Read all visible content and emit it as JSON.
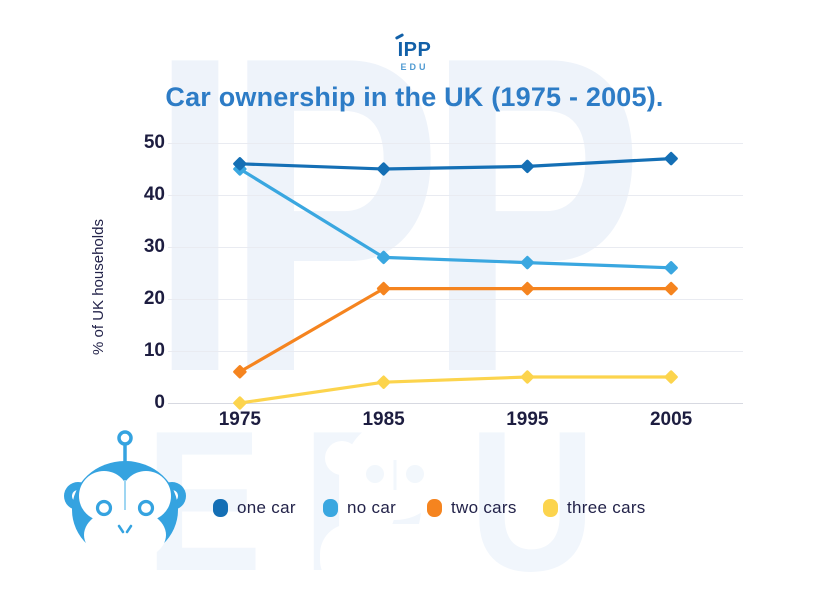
{
  "logo": {
    "text": "IPP",
    "subtext": "EDU"
  },
  "title": "Car ownership in the UK (1975 - 2005).",
  "watermarks": {
    "big": "IPP",
    "bottom": "EDU"
  },
  "chart_data": {
    "type": "line",
    "title": "Car ownership in the UK (1975 - 2005).",
    "categories": [
      "1975",
      "1985",
      "1995",
      "2005"
    ],
    "series": [
      {
        "name": "one car",
        "color": "#146fb5",
        "values": [
          46,
          45,
          45.5,
          47
        ]
      },
      {
        "name": "no car",
        "color": "#3aa7e0",
        "values": [
          45,
          28,
          27,
          26
        ]
      },
      {
        "name": "two cars",
        "color": "#f5841f",
        "values": [
          6,
          22,
          22,
          22
        ]
      },
      {
        "name": "three cars",
        "color": "#fcd44d",
        "values": [
          0,
          4,
          5,
          5
        ]
      }
    ],
    "xlabel": "",
    "ylabel": "% of UK households",
    "ylim": [
      0,
      50
    ],
    "yticks": [
      0,
      10,
      20,
      30,
      40,
      50
    ],
    "grid": true,
    "legend_position": "bottom",
    "marker": "diamond"
  },
  "colors": {
    "title": "#2d7cc6",
    "axis_text": "#1d1d40",
    "legend_text": "#23234a",
    "logo_primary": "#1260a8",
    "logo_secondary": "#4f9ad2",
    "mascot": "#35a3e0",
    "grid": "#e9ebf1",
    "watermark": "#eef3fa"
  }
}
